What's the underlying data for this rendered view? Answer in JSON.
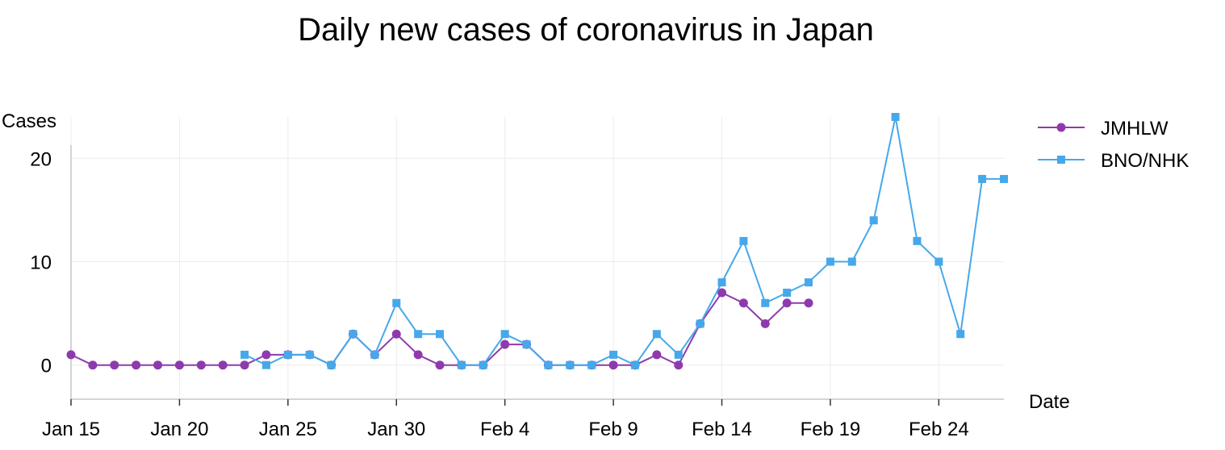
{
  "chart_data": {
    "type": "line",
    "title": "Daily new cases of coronavirus in Japan",
    "xlabel": "Date",
    "ylabel": "Cases",
    "x_ticks": [
      "Jan 15",
      "Jan 20",
      "Jan 25",
      "Jan 30",
      "Feb 4",
      "Feb 9",
      "Feb 14",
      "Feb 19",
      "Feb 24"
    ],
    "y_ticks": [
      0,
      10,
      20
    ],
    "xlim": [
      "2020-01-15",
      "2020-02-27"
    ],
    "ylim": [
      -3.3,
      24
    ],
    "grid": true,
    "legend_position": "top-right",
    "series": [
      {
        "name": "JMHLW",
        "color": "#8e3aad",
        "marker": "circle",
        "points": [
          [
            "2020-01-15",
            1
          ],
          [
            "2020-01-16",
            0
          ],
          [
            "2020-01-17",
            0
          ],
          [
            "2020-01-18",
            0
          ],
          [
            "2020-01-19",
            0
          ],
          [
            "2020-01-20",
            0
          ],
          [
            "2020-01-21",
            0
          ],
          [
            "2020-01-22",
            0
          ],
          [
            "2020-01-23",
            0
          ],
          [
            "2020-01-24",
            1
          ],
          [
            "2020-01-25",
            1
          ],
          [
            "2020-01-26",
            1
          ],
          [
            "2020-01-27",
            0
          ],
          [
            "2020-01-28",
            3
          ],
          [
            "2020-01-29",
            1
          ],
          [
            "2020-01-30",
            3
          ],
          [
            "2020-01-31",
            1
          ],
          [
            "2020-02-01",
            0
          ],
          [
            "2020-02-02",
            0
          ],
          [
            "2020-02-03",
            0
          ],
          [
            "2020-02-04",
            2
          ],
          [
            "2020-02-05",
            2
          ],
          [
            "2020-02-06",
            0
          ],
          [
            "2020-02-07",
            0
          ],
          [
            "2020-02-08",
            0
          ],
          [
            "2020-02-09",
            0
          ],
          [
            "2020-02-10",
            0
          ],
          [
            "2020-02-11",
            1
          ],
          [
            "2020-02-12",
            0
          ],
          [
            "2020-02-13",
            4
          ],
          [
            "2020-02-14",
            7
          ],
          [
            "2020-02-15",
            6
          ],
          [
            "2020-02-16",
            4
          ],
          [
            "2020-02-17",
            6
          ],
          [
            "2020-02-18",
            6
          ]
        ]
      },
      {
        "name": "BNO/NHK",
        "color": "#46a8ea",
        "marker": "square",
        "points": [
          [
            "2020-01-23",
            1
          ],
          [
            "2020-01-24",
            0
          ],
          [
            "2020-01-25",
            1
          ],
          [
            "2020-01-26",
            1
          ],
          [
            "2020-01-27",
            0
          ],
          [
            "2020-01-28",
            3
          ],
          [
            "2020-01-29",
            1
          ],
          [
            "2020-01-30",
            6
          ],
          [
            "2020-01-31",
            3
          ],
          [
            "2020-02-01",
            3
          ],
          [
            "2020-02-02",
            0
          ],
          [
            "2020-02-03",
            0
          ],
          [
            "2020-02-04",
            3
          ],
          [
            "2020-02-05",
            2
          ],
          [
            "2020-02-06",
            0
          ],
          [
            "2020-02-07",
            0
          ],
          [
            "2020-02-08",
            0
          ],
          [
            "2020-02-09",
            1
          ],
          [
            "2020-02-10",
            0
          ],
          [
            "2020-02-11",
            3
          ],
          [
            "2020-02-12",
            1
          ],
          [
            "2020-02-13",
            4
          ],
          [
            "2020-02-14",
            8
          ],
          [
            "2020-02-15",
            12
          ],
          [
            "2020-02-16",
            6
          ],
          [
            "2020-02-17",
            7
          ],
          [
            "2020-02-18",
            8
          ],
          [
            "2020-02-19",
            10
          ],
          [
            "2020-02-20",
            10
          ],
          [
            "2020-02-21",
            14
          ],
          [
            "2020-02-22",
            24
          ],
          [
            "2020-02-23",
            12
          ],
          [
            "2020-02-24",
            10
          ],
          [
            "2020-02-25",
            3
          ],
          [
            "2020-02-26",
            18
          ],
          [
            "2020-02-27",
            18
          ]
        ]
      }
    ]
  }
}
